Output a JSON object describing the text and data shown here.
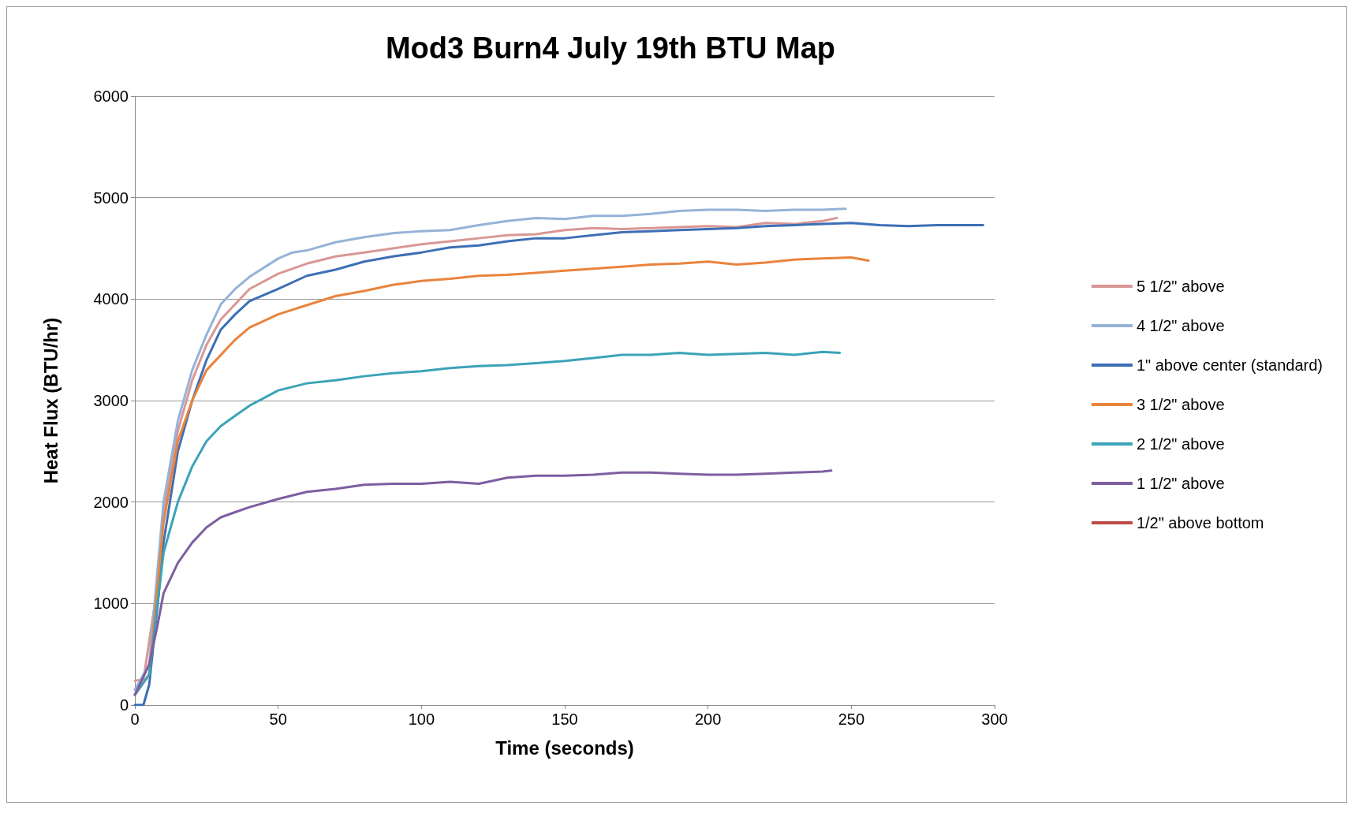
{
  "chart_data": {
    "type": "line",
    "title": "Mod3 Burn4 July 19th BTU Map",
    "xlabel": "Time (seconds)",
    "ylabel": "Heat Flux (BTU/hr)",
    "xlim": [
      0,
      300
    ],
    "xticks": [
      0,
      50,
      100,
      150,
      200,
      250,
      300
    ],
    "ylim": [
      0,
      6000
    ],
    "yticks": [
      0,
      1000,
      2000,
      3000,
      4000,
      5000,
      6000
    ],
    "grid": "y",
    "legend": "right",
    "marker": "none",
    "line_style": "solid",
    "series": [
      {
        "name": "5 1/2\" above",
        "color": "#d99795",
        "x": [
          0,
          3,
          7,
          10,
          15,
          20,
          25,
          30,
          35,
          40,
          50,
          60,
          70,
          80,
          90,
          100,
          110,
          120,
          130,
          140,
          150,
          160,
          170,
          180,
          190,
          200,
          210,
          220,
          230,
          240,
          245
        ],
        "values": [
          240,
          250,
          1000,
          1900,
          2700,
          3200,
          3550,
          3800,
          3950,
          4100,
          4250,
          4350,
          4420,
          4460,
          4500,
          4540,
          4570,
          4600,
          4630,
          4640,
          4680,
          4700,
          4690,
          4700,
          4710,
          4720,
          4710,
          4750,
          4740,
          4770,
          4800
        ]
      },
      {
        "name": "4 1/2\" above",
        "color": "#95b3d7",
        "x": [
          0,
          5,
          10,
          15,
          20,
          25,
          30,
          35,
          40,
          50,
          55,
          60,
          70,
          80,
          90,
          100,
          110,
          120,
          130,
          140,
          150,
          160,
          170,
          180,
          190,
          200,
          210,
          220,
          230,
          240,
          248
        ],
        "values": [
          150,
          400,
          2000,
          2800,
          3300,
          3650,
          3950,
          4100,
          4220,
          4400,
          4460,
          4480,
          4560,
          4610,
          4650,
          4670,
          4680,
          4730,
          4770,
          4800,
          4790,
          4820,
          4820,
          4840,
          4870,
          4880,
          4880,
          4870,
          4880,
          4880,
          4890
        ]
      },
      {
        "name": "1\" above center (standard)",
        "color": "#3d6fb6",
        "x": [
          0,
          3,
          5,
          8,
          10,
          15,
          20,
          25,
          30,
          35,
          40,
          50,
          60,
          70,
          80,
          90,
          100,
          110,
          120,
          130,
          140,
          150,
          160,
          170,
          180,
          190,
          200,
          210,
          220,
          230,
          240,
          250,
          260,
          270,
          280,
          290,
          296
        ],
        "values": [
          0,
          0,
          200,
          1000,
          1600,
          2500,
          3000,
          3400,
          3700,
          3850,
          3980,
          4100,
          4230,
          4290,
          4370,
          4420,
          4460,
          4510,
          4530,
          4570,
          4600,
          4600,
          4630,
          4660,
          4670,
          4680,
          4690,
          4700,
          4720,
          4730,
          4740,
          4750,
          4730,
          4720,
          4730,
          4730,
          4730
        ]
      },
      {
        "name": "3 1/2\" above",
        "color": "#e9843c",
        "x": [
          0,
          5,
          10,
          15,
          20,
          25,
          30,
          35,
          40,
          50,
          60,
          70,
          80,
          90,
          100,
          110,
          120,
          130,
          140,
          150,
          160,
          170,
          180,
          190,
          200,
          210,
          220,
          230,
          240,
          250,
          256
        ],
        "values": [
          100,
          300,
          1800,
          2600,
          3000,
          3300,
          3450,
          3600,
          3720,
          3850,
          3940,
          4030,
          4080,
          4140,
          4180,
          4200,
          4230,
          4240,
          4260,
          4280,
          4300,
          4320,
          4340,
          4350,
          4370,
          4340,
          4360,
          4390,
          4400,
          4410,
          4380
        ]
      },
      {
        "name": "2 1/2\" above",
        "color": "#3ba3b8",
        "x": [
          0,
          5,
          10,
          15,
          20,
          25,
          30,
          35,
          40,
          50,
          60,
          70,
          80,
          90,
          100,
          110,
          120,
          130,
          140,
          150,
          160,
          170,
          180,
          190,
          200,
          210,
          220,
          230,
          240,
          246
        ],
        "values": [
          100,
          300,
          1500,
          2000,
          2350,
          2600,
          2750,
          2850,
          2950,
          3100,
          3170,
          3200,
          3240,
          3270,
          3290,
          3320,
          3340,
          3350,
          3370,
          3390,
          3420,
          3450,
          3450,
          3470,
          3450,
          3460,
          3470,
          3450,
          3480,
          3470
        ]
      },
      {
        "name": "1 1/2\" above",
        "color": "#7d5ea0",
        "x": [
          0,
          5,
          8,
          10,
          15,
          20,
          25,
          30,
          35,
          40,
          50,
          60,
          70,
          80,
          90,
          100,
          110,
          120,
          130,
          140,
          150,
          160,
          170,
          180,
          190,
          200,
          210,
          220,
          230,
          240,
          243
        ],
        "values": [
          100,
          400,
          800,
          1100,
          1400,
          1600,
          1750,
          1850,
          1900,
          1950,
          2030,
          2100,
          2130,
          2170,
          2180,
          2180,
          2200,
          2180,
          2240,
          2260,
          2260,
          2270,
          2290,
          2290,
          2280,
          2270,
          2270,
          2280,
          2290,
          2300,
          2310
        ]
      },
      {
        "name": "1/2\" above bottom",
        "color": "#be4b48"
      }
    ]
  }
}
